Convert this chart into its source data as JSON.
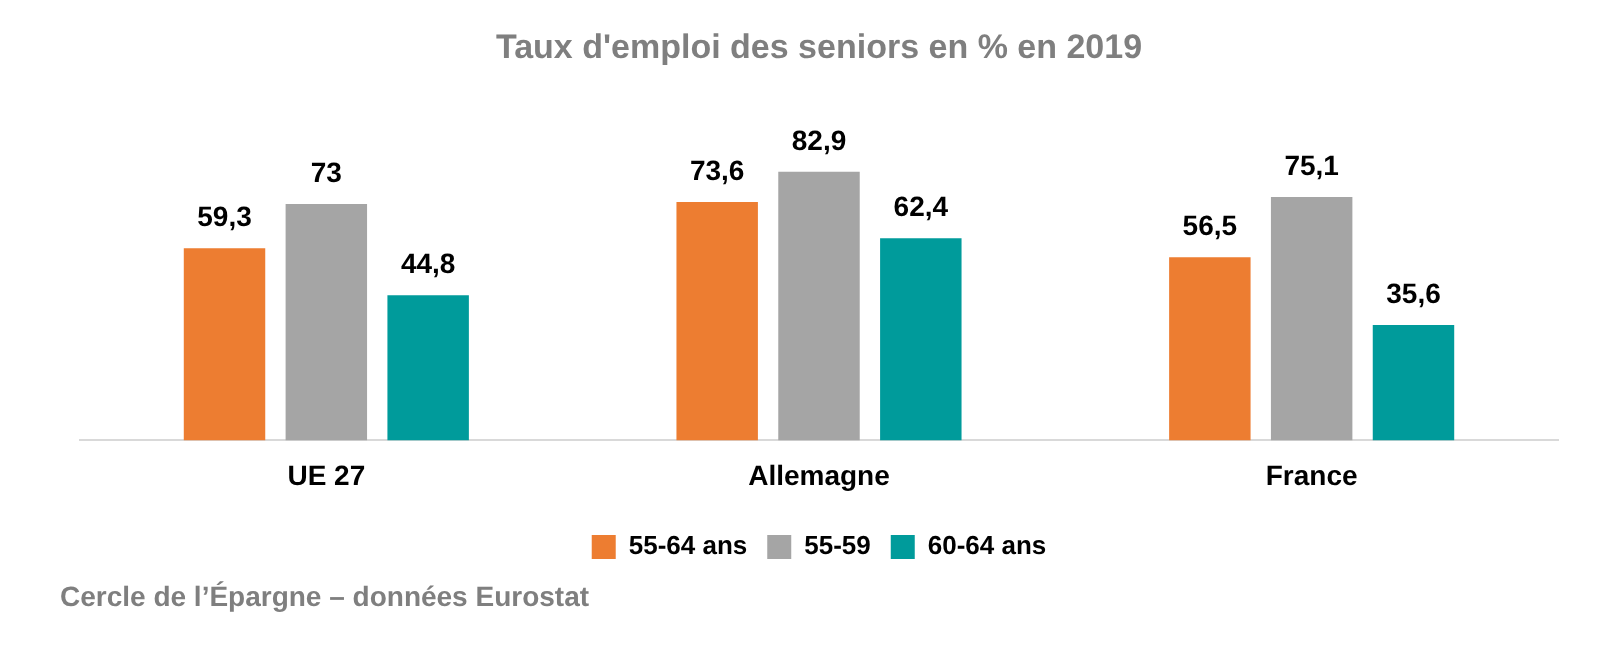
{
  "chart_data": {
    "type": "bar",
    "title": "Taux d'emploi des seniors en % en 2019",
    "categories": [
      "UE 27",
      "Allemagne",
      "France"
    ],
    "series": [
      {
        "name": "55-64 ans",
        "color": "#ed7d31",
        "values": [
          59.3,
          73.6,
          56.5
        ],
        "value_labels": [
          "59,3",
          "73,6",
          "56,5"
        ]
      },
      {
        "name": "55-59",
        "color": "#a5a5a5",
        "values": [
          73,
          82.9,
          75.1
        ],
        "value_labels": [
          "73",
          "82,9",
          "75,1"
        ]
      },
      {
        "name": "60-64 ans",
        "color": "#009b9b",
        "values": [
          44.8,
          62.4,
          35.6
        ],
        "value_labels": [
          "44,8",
          "62,4",
          "35,6"
        ]
      }
    ],
    "legend": "bottom",
    "grid": false,
    "tick_labels": "x",
    "annotations": [
      "Cercle de l’Épargne – données Eurostat"
    ]
  }
}
